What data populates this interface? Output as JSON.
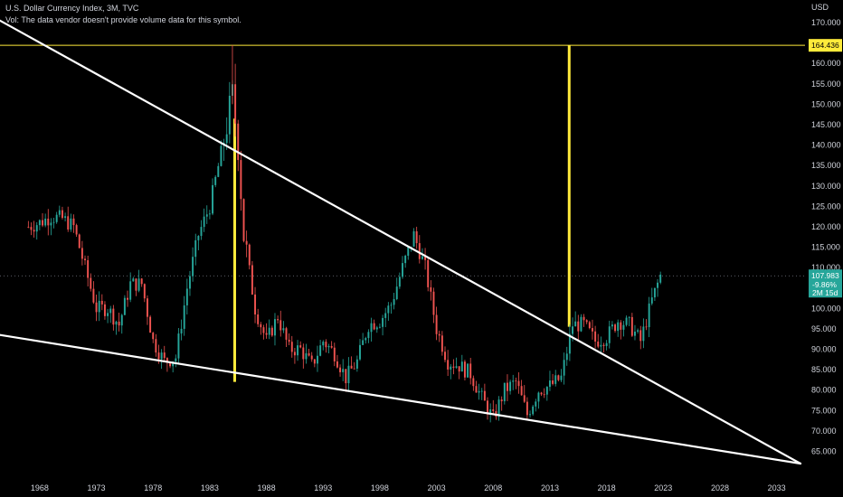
{
  "header": {
    "title": "U.S. Dollar Currency Index, 3M, TVC",
    "volume_note": "Vol: The data vendor doesn't provide volume data for this symbol."
  },
  "colors": {
    "background": "#000000",
    "up": "#26a69a",
    "down": "#ef5350",
    "trendline": "#ffffff",
    "marker": "#ffeb3b",
    "price_line": "#ffeb3b",
    "axis_text": "#d1d4dc",
    "last_price_tag": "#26a69a"
  },
  "chart_data": {
    "type": "candlestick",
    "currency_label": "USD",
    "y_ticks": [
      65,
      70,
      75,
      80,
      85,
      90,
      95,
      100,
      105,
      110,
      115,
      120,
      125,
      130,
      135,
      140,
      145,
      150,
      155,
      160,
      170
    ],
    "y_tick_labels": [
      "65.000",
      "70.000",
      "75.000",
      "80.000",
      "85.000",
      "90.000",
      "95.000",
      "100.000",
      "105.000",
      "110.000",
      "115.000",
      "120.000",
      "125.000",
      "130.000",
      "135.000",
      "140.000",
      "145.000",
      "150.000",
      "155.000",
      "160.000",
      "170.000"
    ],
    "ylim": [
      61,
      172
    ],
    "x_ticks": [
      "1968",
      "1973",
      "1978",
      "1983",
      "1988",
      "1993",
      "1998",
      "2003",
      "2008",
      "2013",
      "2018",
      "2023",
      "2028",
      "2033"
    ],
    "xlim": [
      1964.5,
      2035.5
    ],
    "horizontal_level": {
      "value": 164.436,
      "label": "164.436"
    },
    "last_price": {
      "value": 107.983,
      "label": "107.983",
      "change": "-9.86%",
      "countdown": "2M 15d"
    },
    "vertical_markers": [
      1985.2,
      2014.7
    ],
    "trendlines": [
      {
        "from": [
          1964.5,
          170.5
        ],
        "to": [
          2035.1,
          62
        ]
      },
      {
        "from": [
          1964.5,
          93.5
        ],
        "to": [
          2035.1,
          62
        ]
      }
    ],
    "price_path": [
      [
        1967.0,
        120.0
      ],
      [
        1968.0,
        121.0
      ],
      [
        1969.0,
        122.5
      ],
      [
        1970.0,
        122.0
      ],
      [
        1971.0,
        120.0
      ],
      [
        1972.0,
        110.0
      ],
      [
        1973.0,
        100.0
      ],
      [
        1974.0,
        100.0
      ],
      [
        1975.0,
        96.0
      ],
      [
        1976.0,
        106.0
      ],
      [
        1977.0,
        106.0
      ],
      [
        1978.0,
        92.0
      ],
      [
        1979.0,
        87.0
      ],
      [
        1980.0,
        88.0
      ],
      [
        1981.0,
        105.0
      ],
      [
        1982.0,
        118.0
      ],
      [
        1983.0,
        125.0
      ],
      [
        1984.0,
        138.0
      ],
      [
        1985.0,
        152.0
      ],
      [
        1985.5,
        140.0
      ],
      [
        1986.0,
        118.0
      ],
      [
        1987.0,
        100.0
      ],
      [
        1988.0,
        92.0
      ],
      [
        1989.0,
        98.0
      ],
      [
        1990.0,
        90.0
      ],
      [
        1991.0,
        90.0
      ],
      [
        1992.0,
        86.0
      ],
      [
        1993.0,
        92.0
      ],
      [
        1994.0,
        89.0
      ],
      [
        1995.0,
        83.0
      ],
      [
        1996.0,
        87.0
      ],
      [
        1997.0,
        96.0
      ],
      [
        1998.0,
        97.0
      ],
      [
        1999.0,
        101.0
      ],
      [
        2000.0,
        110.0
      ],
      [
        2001.0,
        118.0
      ],
      [
        2002.0,
        110.0
      ],
      [
        2003.0,
        95.0
      ],
      [
        2004.0,
        87.0
      ],
      [
        2005.0,
        86.0
      ],
      [
        2006.0,
        84.0
      ],
      [
        2007.0,
        78.0
      ],
      [
        2008.0,
        73.0
      ],
      [
        2009.0,
        80.0
      ],
      [
        2010.0,
        82.0
      ],
      [
        2011.0,
        74.0
      ],
      [
        2012.0,
        80.0
      ],
      [
        2013.0,
        81.0
      ],
      [
        2014.0,
        83.0
      ],
      [
        2015.0,
        96.0
      ],
      [
        2016.0,
        96.0
      ],
      [
        2017.0,
        92.0
      ],
      [
        2018.0,
        93.0
      ],
      [
        2019.0,
        97.0
      ],
      [
        2020.0,
        96.0
      ],
      [
        2021.0,
        92.0
      ],
      [
        2022.0,
        102.0
      ],
      [
        2022.75,
        108.0
      ]
    ]
  }
}
